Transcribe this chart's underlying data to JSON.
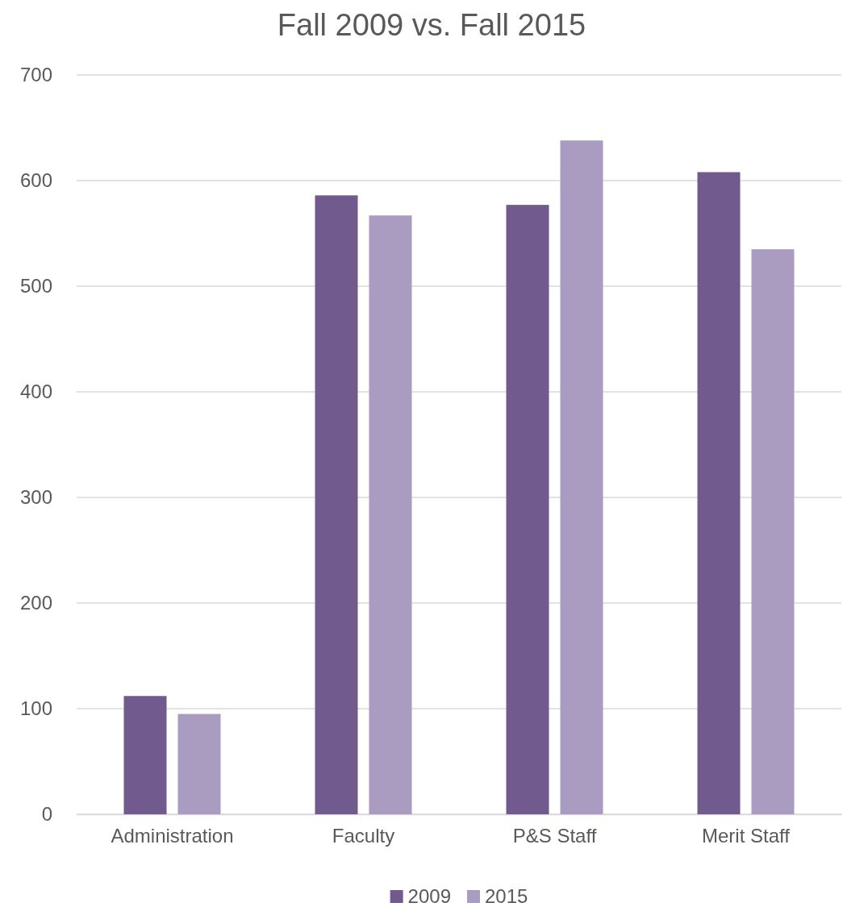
{
  "chart_data": {
    "type": "bar",
    "title": "Fall 2009 vs. Fall 2015",
    "categories": [
      "Administration",
      "Faculty",
      "P&S Staff",
      "Merit Staff"
    ],
    "series": [
      {
        "name": "2009",
        "color": "#715a8e",
        "values": [
          112,
          586,
          577,
          608
        ]
      },
      {
        "name": "2015",
        "color": "#a99cc0",
        "values": [
          95,
          567,
          638,
          535
        ]
      }
    ],
    "ylim": [
      0,
      700
    ],
    "yticks": [
      0,
      100,
      200,
      300,
      400,
      500,
      600,
      700
    ],
    "grid": "y",
    "legend": "bottom"
  }
}
